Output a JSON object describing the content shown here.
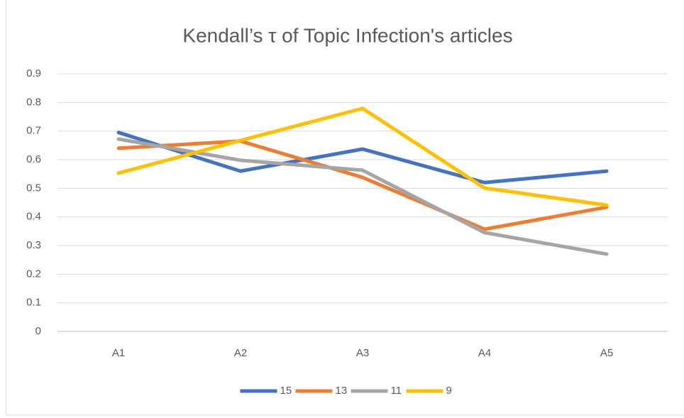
{
  "chart_data": {
    "type": "line",
    "title": "Kendall’s τ of Topic Infection's articles",
    "categories": [
      "A1",
      "A2",
      "A3",
      "A4",
      "A5"
    ],
    "series": [
      {
        "name": "15",
        "color": "#4472c4",
        "values": [
          0.695,
          0.56,
          0.637,
          0.52,
          0.56
        ]
      },
      {
        "name": "13",
        "color": "#ed7d31",
        "values": [
          0.64,
          0.665,
          0.538,
          0.357,
          0.434
        ]
      },
      {
        "name": "11",
        "color": "#a5a5a5",
        "values": [
          0.672,
          0.598,
          0.563,
          0.345,
          0.27
        ]
      },
      {
        "name": "9",
        "color": "#ffc000",
        "values": [
          0.553,
          0.667,
          0.779,
          0.501,
          0.441
        ]
      }
    ],
    "ylim": [
      0,
      0.9
    ],
    "yticks": [
      0,
      0.1,
      0.2,
      0.3,
      0.4,
      0.5,
      0.6,
      0.7,
      0.8,
      0.9
    ],
    "grid": true,
    "legend": "bottom"
  }
}
